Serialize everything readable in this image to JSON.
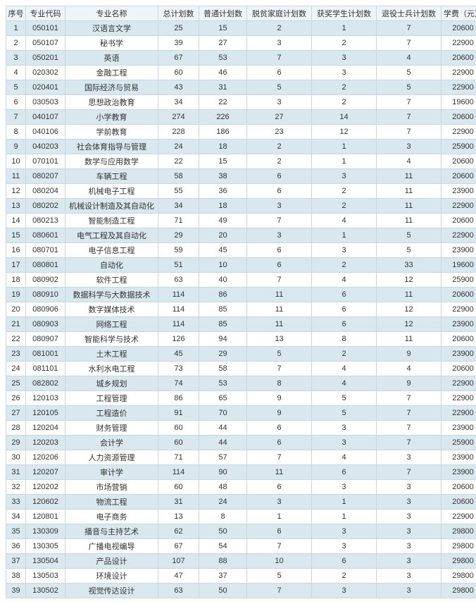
{
  "table": {
    "columns": [
      "序号",
      "专业代码",
      "专业名称",
      "总计划数",
      "普通计划数",
      "脱贫家庭计划数",
      "获奖学生计划数",
      "退役士兵计划数",
      "学费（元）"
    ],
    "rows": [
      [
        "1",
        "050101",
        "汉语言文学",
        "25",
        "15",
        "2",
        "1",
        "7",
        "20600"
      ],
      [
        "2",
        "050107",
        "秘书学",
        "39",
        "27",
        "3",
        "2",
        "7",
        "22900"
      ],
      [
        "3",
        "050201",
        "英语",
        "67",
        "53",
        "7",
        "3",
        "4",
        "20600"
      ],
      [
        "4",
        "020302",
        "金融工程",
        "60",
        "46",
        "6",
        "3",
        "5",
        "22900"
      ],
      [
        "5",
        "020401",
        "国际经济与贸易",
        "43",
        "31",
        "5",
        "2",
        "5",
        "22900"
      ],
      [
        "6",
        "030503",
        "思想政治教育",
        "34",
        "22",
        "3",
        "2",
        "7",
        "19600"
      ],
      [
        "7",
        "040107",
        "小学教育",
        "274",
        "226",
        "27",
        "14",
        "7",
        "20600"
      ],
      [
        "8",
        "040106",
        "学前教育",
        "228",
        "186",
        "23",
        "12",
        "7",
        "22900"
      ],
      [
        "9",
        "040203",
        "社会体育指导与管理",
        "24",
        "18",
        "2",
        "1",
        "3",
        "25900"
      ],
      [
        "10",
        "070101",
        "数学与应用数学",
        "22",
        "15",
        "2",
        "1",
        "4",
        "20600"
      ],
      [
        "11",
        "080207",
        "车辆工程",
        "58",
        "38",
        "6",
        "3",
        "11",
        "20600"
      ],
      [
        "12",
        "080204",
        "机械电子工程",
        "55",
        "36",
        "6",
        "2",
        "11",
        "23900"
      ],
      [
        "13",
        "080202",
        "机械设计制造及其自动化",
        "34",
        "18",
        "3",
        "2",
        "11",
        "22900"
      ],
      [
        "14",
        "080213",
        "智能制造工程",
        "71",
        "49",
        "7",
        "4",
        "11",
        "20600"
      ],
      [
        "15",
        "080601",
        "电气工程及其自动化",
        "29",
        "20",
        "3",
        "1",
        "5",
        "22900"
      ],
      [
        "16",
        "080701",
        "电子信息工程",
        "59",
        "45",
        "6",
        "3",
        "5",
        "23900"
      ],
      [
        "17",
        "080801",
        "自动化",
        "51",
        "10",
        "6",
        "2",
        "33",
        "19600"
      ],
      [
        "18",
        "080902",
        "软件工程",
        "63",
        "40",
        "7",
        "4",
        "12",
        "25900"
      ],
      [
        "19",
        "080910",
        "数据科学与大数据技术",
        "114",
        "86",
        "11",
        "6",
        "11",
        "20600"
      ],
      [
        "20",
        "080906",
        "数字媒体技术",
        "114",
        "85",
        "11",
        "6",
        "12",
        "22900"
      ],
      [
        "21",
        "080903",
        "网络工程",
        "114",
        "85",
        "11",
        "6",
        "12",
        "23900"
      ],
      [
        "22",
        "080907",
        "智能科学与技术",
        "126",
        "94",
        "13",
        "8",
        "11",
        "20600"
      ],
      [
        "23",
        "081001",
        "土木工程",
        "45",
        "29",
        "5",
        "2",
        "9",
        "23900"
      ],
      [
        "24",
        "081101",
        "水利水电工程",
        "73",
        "58",
        "7",
        "4",
        "4",
        "20600"
      ],
      [
        "25",
        "082802",
        "城乡规划",
        "74",
        "53",
        "8",
        "4",
        "9",
        "22900"
      ],
      [
        "26",
        "120103",
        "工程管理",
        "86",
        "65",
        "9",
        "5",
        "7",
        "22900"
      ],
      [
        "27",
        "120105",
        "工程造价",
        "91",
        "70",
        "9",
        "5",
        "7",
        "22900"
      ],
      [
        "28",
        "120204",
        "财务管理",
        "60",
        "44",
        "6",
        "3",
        "7",
        "23900"
      ],
      [
        "29",
        "120203",
        "会计学",
        "60",
        "44",
        "6",
        "3",
        "7",
        "25900"
      ],
      [
        "30",
        "120206",
        "人力资源管理",
        "71",
        "57",
        "7",
        "4",
        "3",
        "23900"
      ],
      [
        "31",
        "120207",
        "审计学",
        "114",
        "90",
        "11",
        "6",
        "7",
        "23900"
      ],
      [
        "32",
        "120202",
        "市场营销",
        "60",
        "48",
        "6",
        "3",
        "3",
        "20600"
      ],
      [
        "33",
        "120602",
        "物流工程",
        "31",
        "24",
        "3",
        "1",
        "3",
        "20600"
      ],
      [
        "34",
        "120801",
        "电子商务",
        "13",
        "8",
        "1",
        "1",
        "3",
        "22900"
      ],
      [
        "35",
        "130309",
        "播音与主持艺术",
        "62",
        "50",
        "6",
        "3",
        "3",
        "29800"
      ],
      [
        "36",
        "130305",
        "广播电视编导",
        "67",
        "54",
        "7",
        "3",
        "3",
        "29800"
      ],
      [
        "37",
        "130504",
        "产品设计",
        "107",
        "88",
        "10",
        "6",
        "3",
        "29800"
      ],
      [
        "38",
        "130503",
        "环境设计",
        "47",
        "37",
        "5",
        "2",
        "3",
        "29800"
      ],
      [
        "39",
        "130502",
        "视觉传达设计",
        "63",
        "50",
        "7",
        "3",
        "3",
        "29800"
      ]
    ],
    "header_bg": "#eef4f8",
    "odd_bg": "#d9e7ef",
    "even_bg": "#ffffff",
    "border_color": "#c8d6e0",
    "font_size": 11
  }
}
